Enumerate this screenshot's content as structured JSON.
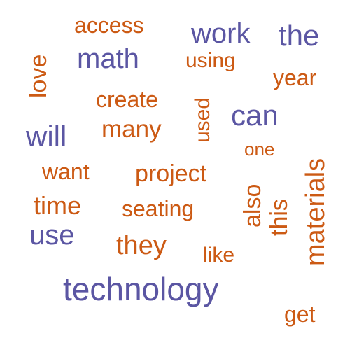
{
  "colors": {
    "purple": "#5b56a3",
    "orange": "#cc5a14"
  },
  "words": [
    {
      "text": "access",
      "color": "orange"
    },
    {
      "text": "work",
      "color": "purple"
    },
    {
      "text": "the",
      "color": "purple"
    },
    {
      "text": "math",
      "color": "purple"
    },
    {
      "text": "using",
      "color": "orange"
    },
    {
      "text": "love",
      "color": "orange"
    },
    {
      "text": "year",
      "color": "orange"
    },
    {
      "text": "create",
      "color": "orange"
    },
    {
      "text": "used",
      "color": "orange"
    },
    {
      "text": "can",
      "color": "purple"
    },
    {
      "text": "many",
      "color": "orange"
    },
    {
      "text": "will",
      "color": "purple"
    },
    {
      "text": "one",
      "color": "orange"
    },
    {
      "text": "materials",
      "color": "orange"
    },
    {
      "text": "want",
      "color": "orange"
    },
    {
      "text": "project",
      "color": "orange"
    },
    {
      "text": "also",
      "color": "orange"
    },
    {
      "text": "this",
      "color": "orange"
    },
    {
      "text": "time",
      "color": "orange"
    },
    {
      "text": "seating",
      "color": "orange"
    },
    {
      "text": "use",
      "color": "purple"
    },
    {
      "text": "they",
      "color": "orange"
    },
    {
      "text": "like",
      "color": "orange"
    },
    {
      "text": "technology",
      "color": "purple"
    },
    {
      "text": "get",
      "color": "orange"
    }
  ]
}
